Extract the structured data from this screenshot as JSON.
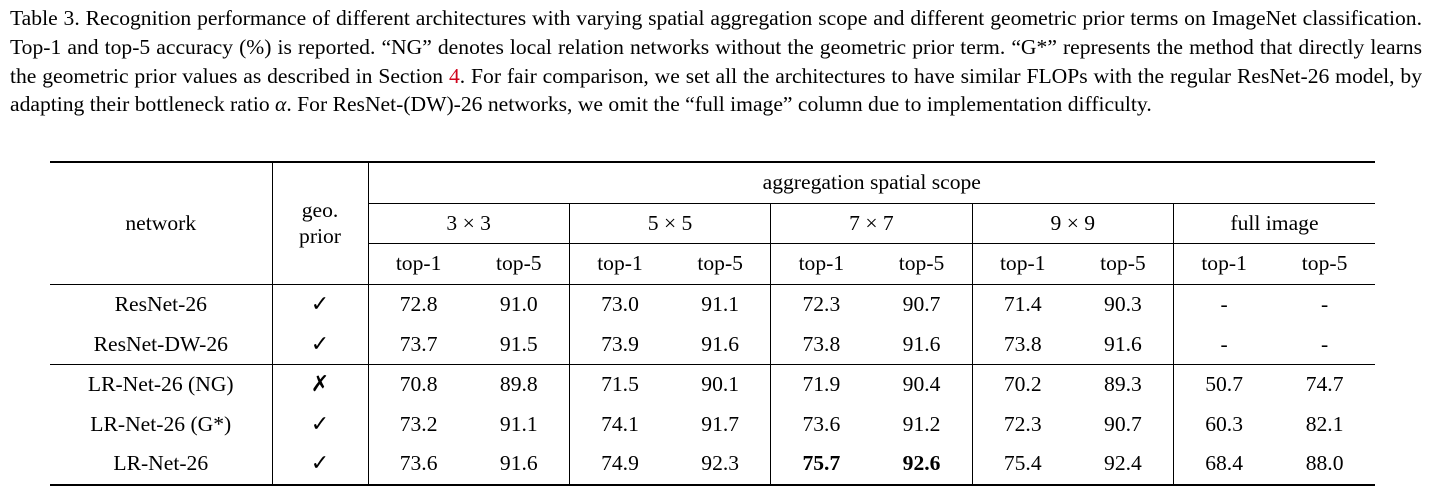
{
  "caption": {
    "part1": "Table 3. Recognition performance of different architectures with varying spatial aggregation scope and different geometric prior terms on ImageNet classification. Top-1 and top-5 accuracy (%) is reported. “NG” denotes local relation networks without the geometric prior term. “G*” represents the method that directly learns the geometric prior values as described in Section ",
    "ref": "4",
    "part2": ". For fair comparison, we set all the architectures to have similar FLOPs with the regular ResNet-26 model, by adapting their bottleneck ratio ",
    "alpha": "α",
    "part3": ". For ResNet-(DW)-26 networks, we omit the “full image” column due to implementation difficulty."
  },
  "table": {
    "header_network": "network",
    "header_geo_line1": "geo.",
    "header_geo_line2": "prior",
    "header_scope": "aggregation spatial scope",
    "scopes": [
      "3 × 3",
      "5 × 5",
      "7 × 7",
      "9 × 9",
      "full image"
    ],
    "sub_headers": [
      "top-1",
      "top-5",
      "top-1",
      "top-5",
      "top-1",
      "top-5",
      "top-1",
      "top-5",
      "top-1",
      "top-5"
    ],
    "rows": [
      {
        "network": "ResNet-26",
        "geo": "✓",
        "values": [
          "72.8",
          "91.0",
          "73.0",
          "91.1",
          "72.3",
          "90.7",
          "71.4",
          "90.3",
          "-",
          "-"
        ]
      },
      {
        "network": "ResNet-DW-26",
        "geo": "✓",
        "values": [
          "73.7",
          "91.5",
          "73.9",
          "91.6",
          "73.8",
          "91.6",
          "73.8",
          "91.6",
          "-",
          "-"
        ]
      },
      {
        "network": "LR-Net-26 (NG)",
        "geo": "✗",
        "values": [
          "70.8",
          "89.8",
          "71.5",
          "90.1",
          "71.9",
          "90.4",
          "70.2",
          "89.3",
          "50.7",
          "74.7"
        ]
      },
      {
        "network": "LR-Net-26 (G*)",
        "geo": "✓",
        "values": [
          "73.2",
          "91.1",
          "74.1",
          "91.7",
          "73.6",
          "91.2",
          "72.3",
          "90.7",
          "60.3",
          "82.1"
        ]
      },
      {
        "network": "LR-Net-26",
        "geo": "✓",
        "values": [
          "73.6",
          "91.6",
          "74.9",
          "92.3",
          "75.7",
          "92.6",
          "75.4",
          "92.4",
          "68.4",
          "88.0"
        ]
      }
    ],
    "bold_cells": [
      [
        4,
        4
      ],
      [
        4,
        5
      ]
    ]
  }
}
